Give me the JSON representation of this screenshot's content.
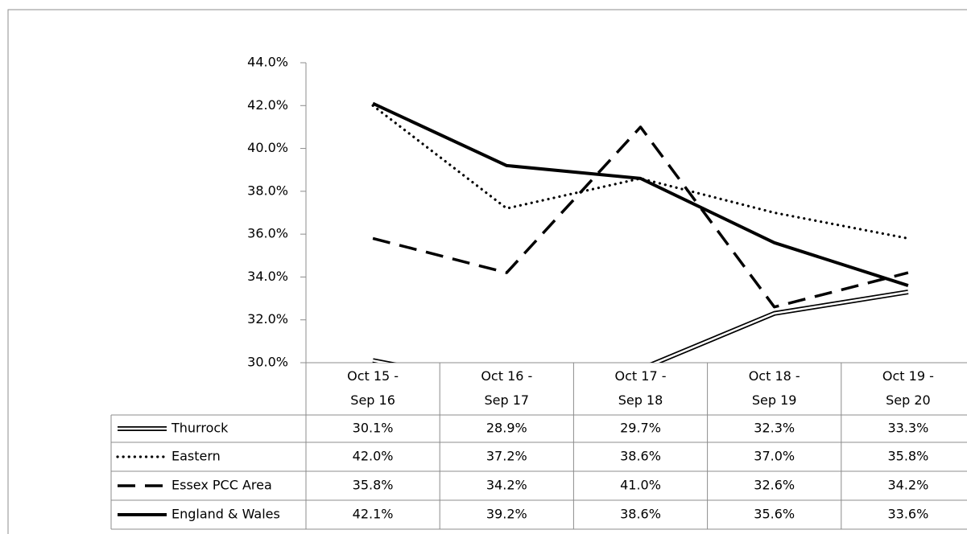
{
  "chart_data": {
    "type": "line",
    "categories": [
      "Oct 15 - Sep 16",
      "Oct 16 - Sep 17",
      "Oct 17 - Sep 18",
      "Oct 18 - Sep 19",
      "Oct 19 - Sep 20"
    ],
    "series": [
      {
        "name": "Thurrock",
        "color": "#000000",
        "style": "double",
        "values": [
          30.1,
          28.9,
          29.7,
          32.3,
          33.3
        ],
        "value_labels": [
          "30.1%",
          "28.9%",
          "29.7%",
          "32.3%",
          "33.3%"
        ]
      },
      {
        "name": "Eastern",
        "color": "#000000",
        "style": "dotted",
        "values": [
          42.0,
          37.2,
          38.6,
          37.0,
          35.8
        ],
        "value_labels": [
          "42.0%",
          "37.2%",
          "38.6%",
          "37.0%",
          "35.8%"
        ]
      },
      {
        "name": "Essex PCC Area",
        "color": "#000000",
        "style": "dashed",
        "values": [
          35.8,
          34.2,
          41.0,
          32.6,
          34.2
        ],
        "value_labels": [
          "35.8%",
          "34.2%",
          "41.0%",
          "32.6%",
          "34.2%"
        ]
      },
      {
        "name": "England & Wales",
        "color": "#000000",
        "style": "solid",
        "values": [
          42.1,
          39.2,
          38.6,
          35.6,
          33.6
        ],
        "value_labels": [
          "42.1%",
          "39.2%",
          "38.6%",
          "35.6%",
          "33.6%"
        ]
      }
    ],
    "ylim": [
      30,
      44
    ],
    "yticks": [
      {
        "value": 30,
        "label": "30.0%"
      },
      {
        "value": 32,
        "label": "32.0%"
      },
      {
        "value": 34,
        "label": "34.0%"
      },
      {
        "value": 36,
        "label": "36.0%"
      },
      {
        "value": 38,
        "label": "38.0%"
      },
      {
        "value": 40,
        "label": "40.0%"
      },
      {
        "value": 42,
        "label": "42.0%"
      },
      {
        "value": 44,
        "label": "44.0%"
      }
    ],
    "data_table": true
  }
}
